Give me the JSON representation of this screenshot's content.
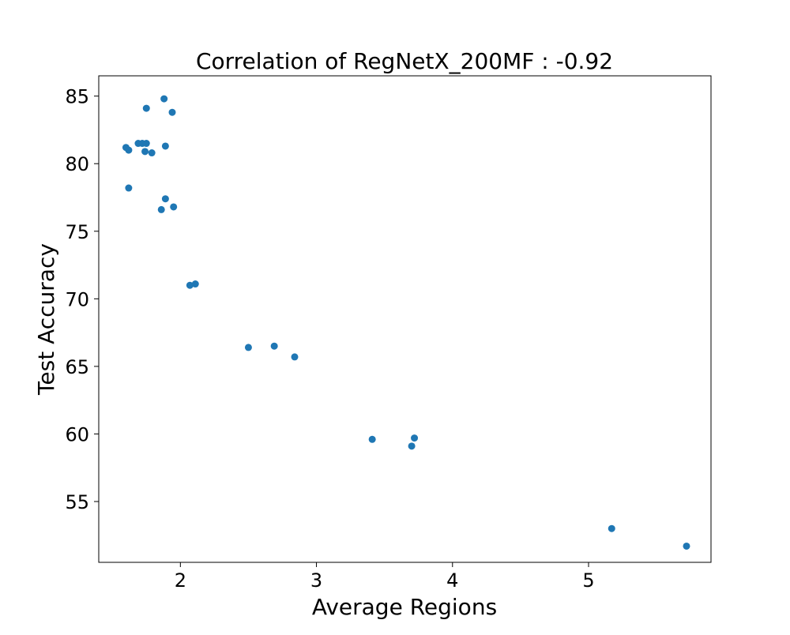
{
  "chart_data": {
    "type": "scatter",
    "title": "Correlation of RegNetX_200MF : -0.92",
    "xlabel": "Average Regions",
    "ylabel": "Test Accuracy",
    "xlim": [
      1.4,
      5.9
    ],
    "ylim": [
      50.5,
      86.5
    ],
    "xticks": [
      2,
      3,
      4,
      5
    ],
    "yticks": [
      55,
      60,
      65,
      70,
      75,
      80,
      85
    ],
    "xtick_labels": [
      "2",
      "3",
      "4",
      "5"
    ],
    "ytick_labels": [
      "55",
      "60",
      "65",
      "70",
      "75",
      "80",
      "85"
    ],
    "grid": false,
    "marker_color": "#1f77b4",
    "points": [
      {
        "x": 1.88,
        "y": 84.8
      },
      {
        "x": 1.75,
        "y": 84.1
      },
      {
        "x": 1.94,
        "y": 83.8
      },
      {
        "x": 1.69,
        "y": 81.5
      },
      {
        "x": 1.72,
        "y": 81.5
      },
      {
        "x": 1.75,
        "y": 81.5
      },
      {
        "x": 1.89,
        "y": 81.3
      },
      {
        "x": 1.6,
        "y": 81.2
      },
      {
        "x": 1.62,
        "y": 81.0
      },
      {
        "x": 1.74,
        "y": 80.9
      },
      {
        "x": 1.79,
        "y": 80.8
      },
      {
        "x": 1.62,
        "y": 78.2
      },
      {
        "x": 1.89,
        "y": 77.4
      },
      {
        "x": 1.95,
        "y": 76.8
      },
      {
        "x": 1.86,
        "y": 76.6
      },
      {
        "x": 2.07,
        "y": 71.0
      },
      {
        "x": 2.11,
        "y": 71.1
      },
      {
        "x": 2.5,
        "y": 66.4
      },
      {
        "x": 2.69,
        "y": 66.5
      },
      {
        "x": 2.84,
        "y": 65.7
      },
      {
        "x": 3.41,
        "y": 59.6
      },
      {
        "x": 3.7,
        "y": 59.1
      },
      {
        "x": 3.72,
        "y": 59.7
      },
      {
        "x": 5.17,
        "y": 53.0
      },
      {
        "x": 5.72,
        "y": 51.7
      }
    ]
  }
}
